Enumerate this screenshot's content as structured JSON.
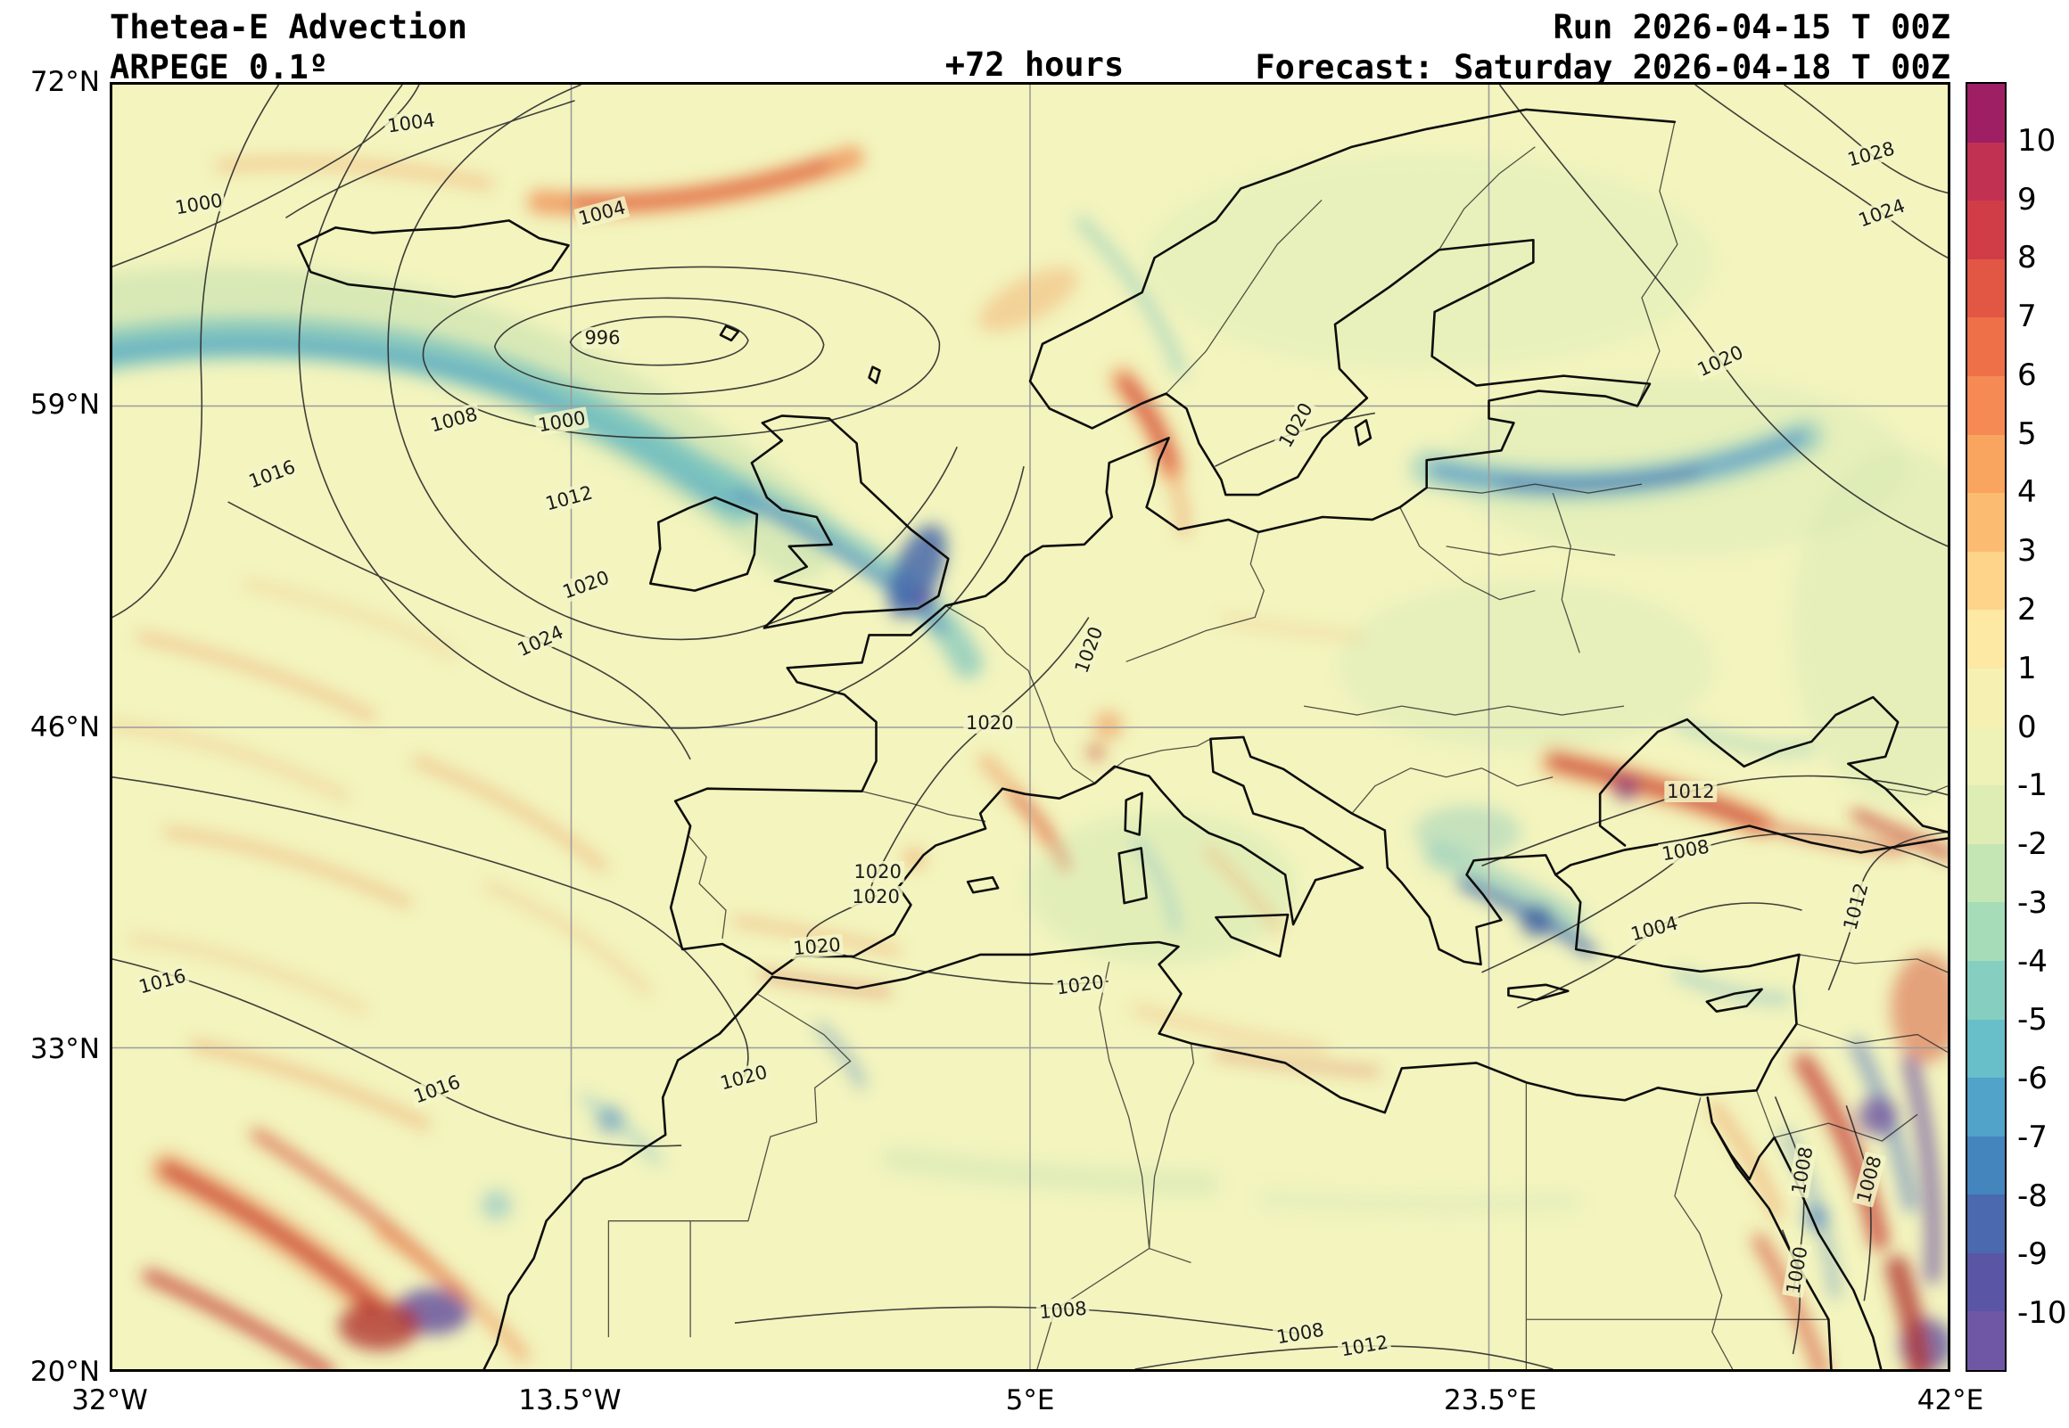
{
  "header": {
    "title": "Thetea-E Advection",
    "model": "ARPEGE 0.1º",
    "lead_time": "+72 hours",
    "run_label": "Run 2026-04-15 T 00Z",
    "forecast_label": "Forecast: Saturday 2026-04-18 T 00Z"
  },
  "chart_data": {
    "type": "heatmap",
    "title": "Thetea-E Advection",
    "model": "ARPEGE 0.1º",
    "lead_time_hours": 72,
    "run": "2026-04-15 T 00Z",
    "valid": "Saturday 2026-04-18 T 00Z",
    "grid": true,
    "x_ticks": [
      "32°W",
      "13.5°W",
      "5°E",
      "23.5°E",
      "42°E"
    ],
    "y_ticks": [
      "72°N",
      "59°N",
      "46°N",
      "33°N",
      "20°N"
    ],
    "lon_range_deg": [
      -32,
      42
    ],
    "lat_range_deg": [
      20,
      72
    ],
    "colorbar": {
      "range": [
        -11,
        11
      ],
      "ticks": [
        10,
        9,
        8,
        7,
        6,
        5,
        4,
        3,
        2,
        1,
        0,
        -1,
        -2,
        -3,
        -4,
        -5,
        -6,
        -7,
        -8,
        -9,
        -10
      ],
      "segment_colors": [
        "#9e1f63",
        "#c03152",
        "#d13d47",
        "#e25744",
        "#ee7048",
        "#f58a54",
        "#f9a45f",
        "#fbbc72",
        "#fdd489",
        "#fde8a4",
        "#f6f0b3",
        "#eef2b6",
        "#ddedb4",
        "#c4e6b4",
        "#a6dcb8",
        "#86cfc0",
        "#68bec9",
        "#51a3c9",
        "#4585bd",
        "#4a69ae",
        "#5a55a4",
        "#6f57a5"
      ]
    },
    "isobar_values": [
      996,
      1000,
      1004,
      1008,
      1012,
      1016,
      1020,
      1024,
      1028
    ],
    "contour_labels": [
      {
        "text": "1004",
        "x": 16.3,
        "y": 3.0,
        "rot": -8
      },
      {
        "text": "1000",
        "x": 4.7,
        "y": 9.3,
        "rot": -10
      },
      {
        "text": "1004",
        "x": 26.7,
        "y": 10.0,
        "rot": -15
      },
      {
        "text": "996",
        "x": 26.7,
        "y": 19.7,
        "rot": 0
      },
      {
        "text": "1008",
        "x": 18.6,
        "y": 26.1,
        "rot": -15
      },
      {
        "text": "1000",
        "x": 24.5,
        "y": 26.2,
        "rot": -10
      },
      {
        "text": "1016",
        "x": 8.7,
        "y": 30.3,
        "rot": -20
      },
      {
        "text": "1012",
        "x": 24.9,
        "y": 32.2,
        "rot": -15
      },
      {
        "text": "1020",
        "x": 25.8,
        "y": 38.9,
        "rot": -20
      },
      {
        "text": "1024",
        "x": 23.3,
        "y": 43.3,
        "rot": -25
      },
      {
        "text": "1020",
        "x": 53.2,
        "y": 44.0,
        "rot": -70
      },
      {
        "text": "1020",
        "x": 64.5,
        "y": 26.5,
        "rot": -60
      },
      {
        "text": "1020",
        "x": 87.6,
        "y": 21.5,
        "rot": -25
      },
      {
        "text": "1028",
        "x": 95.8,
        "y": 5.4,
        "rot": -15
      },
      {
        "text": "1024",
        "x": 96.4,
        "y": 10.0,
        "rot": -20
      },
      {
        "text": "1020",
        "x": 47.8,
        "y": 49.7,
        "rot": 0
      },
      {
        "text": "1012",
        "x": 86.0,
        "y": 55.0,
        "rot": 0
      },
      {
        "text": "1008",
        "x": 85.7,
        "y": 59.6,
        "rot": -10
      },
      {
        "text": "1020",
        "x": 41.7,
        "y": 61.3,
        "rot": 0
      },
      {
        "text": "1020",
        "x": 41.6,
        "y": 63.2,
        "rot": 0
      },
      {
        "text": "1004",
        "x": 84.0,
        "y": 65.7,
        "rot": -15
      },
      {
        "text": "1012",
        "x": 95.0,
        "y": 64.0,
        "rot": -75
      },
      {
        "text": "1020",
        "x": 38.4,
        "y": 67.1,
        "rot": -5
      },
      {
        "text": "1020",
        "x": 52.7,
        "y": 70.1,
        "rot": -8
      },
      {
        "text": "1016",
        "x": 2.7,
        "y": 69.8,
        "rot": -15
      },
      {
        "text": "1016",
        "x": 17.7,
        "y": 78.2,
        "rot": -20
      },
      {
        "text": "1020",
        "x": 34.4,
        "y": 77.3,
        "rot": -15
      },
      {
        "text": "1008",
        "x": 92.1,
        "y": 84.5,
        "rot": -80
      },
      {
        "text": "1008",
        "x": 95.7,
        "y": 85.2,
        "rot": -75
      },
      {
        "text": "1000",
        "x": 91.8,
        "y": 92.3,
        "rot": -80
      },
      {
        "text": "1008",
        "x": 51.8,
        "y": 95.4,
        "rot": -5
      },
      {
        "text": "1008",
        "x": 64.7,
        "y": 97.2,
        "rot": -10
      },
      {
        "text": "1012",
        "x": 68.2,
        "y": 98.2,
        "rot": -10
      }
    ]
  },
  "colors": {
    "map_background": "#f3f4be",
    "coastline": "#0d0d0d",
    "gridline": "#9b9b9b",
    "isobar": "#2b2b2b",
    "text": "#000000"
  }
}
